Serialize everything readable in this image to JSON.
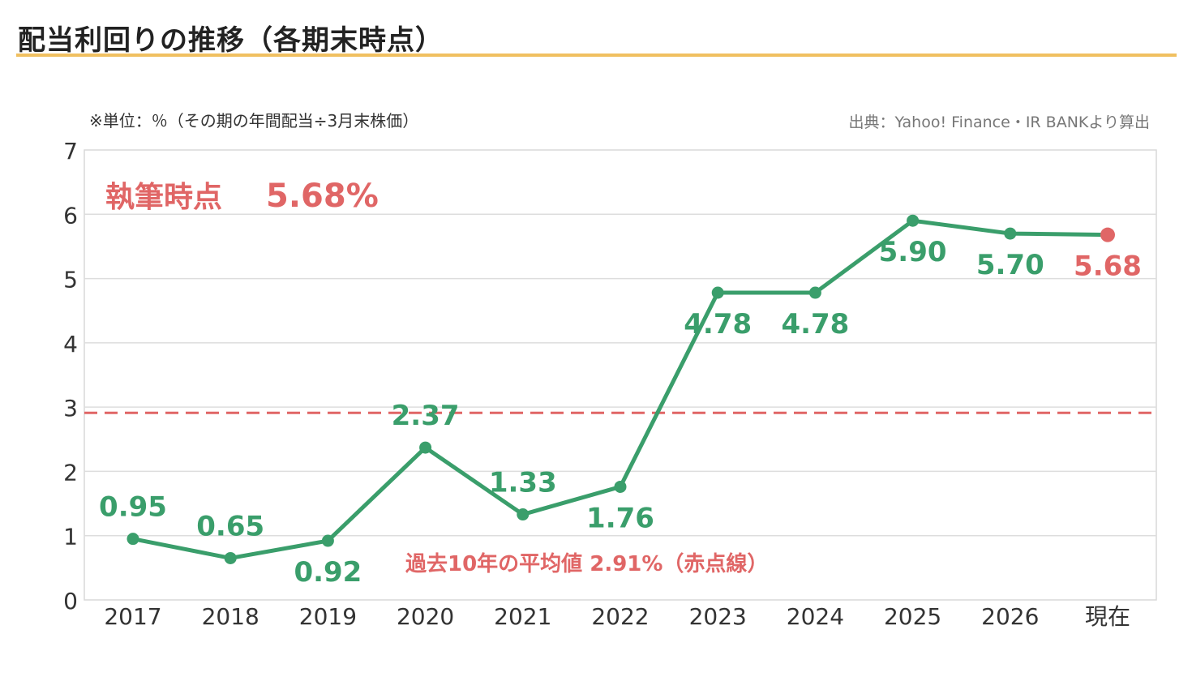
{
  "title": "配当利回りの推移（各期末時点）",
  "colors": {
    "accent_underline": "#f0c060",
    "series": "#3a9e6b",
    "highlight": "#e06666",
    "grid": "#dddddd",
    "text": "#333333"
  },
  "chart_data": {
    "type": "line",
    "title": "配当利回りの推移（各期末時点）",
    "unit_note": "※単位：％（その期の年間配当÷3月末株価）",
    "source_note": "出典：Yahoo! Finance・IR BANKより算出",
    "categories": [
      "2017",
      "2018",
      "2019",
      "2020",
      "2021",
      "2022",
      "2023",
      "2024",
      "2025",
      "2026",
      "現在"
    ],
    "values": [
      0.95,
      0.65,
      0.92,
      2.37,
      1.33,
      1.76,
      4.78,
      4.78,
      5.9,
      5.7,
      5.68
    ],
    "data_labels": [
      "0.95",
      "0.65",
      "0.92",
      "2.37",
      "1.33",
      "1.76",
      "4.78",
      "4.78",
      "5.90",
      "5.70",
      "5.68"
    ],
    "yticks": [
      "0",
      "1",
      "2",
      "3",
      "4",
      "5",
      "6",
      "7"
    ],
    "ylim": [
      0,
      7
    ],
    "grid": true,
    "average_line": {
      "value": 2.91,
      "label": "過去10年の平均値 2.91%（赤点線）"
    },
    "current_callout": {
      "label": "執筆時点",
      "value": "5.68%"
    }
  }
}
